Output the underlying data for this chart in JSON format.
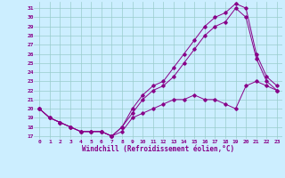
{
  "xlabel": "Windchill (Refroidissement éolien,°C)",
  "bg_color": "#cceeff",
  "grid_color": "#99cccc",
  "line_color": "#880088",
  "x_ticks": [
    0,
    1,
    2,
    3,
    4,
    5,
    6,
    7,
    8,
    9,
    10,
    11,
    12,
    13,
    14,
    15,
    16,
    17,
    18,
    19,
    20,
    21,
    22,
    23
  ],
  "y_ticks": [
    17,
    18,
    19,
    20,
    21,
    22,
    23,
    24,
    25,
    26,
    27,
    28,
    29,
    30,
    31
  ],
  "ylim": [
    16.7,
    31.7
  ],
  "xlim": [
    -0.5,
    23.5
  ],
  "series": [
    {
      "x": [
        0,
        1,
        2,
        3,
        4,
        5,
        6,
        7,
        8,
        9,
        10,
        11,
        12,
        13,
        14,
        15,
        16,
        17,
        18,
        19,
        20,
        21,
        22,
        23
      ],
      "y": [
        20,
        19,
        18.5,
        18,
        17.5,
        17.5,
        17.5,
        17,
        17.5,
        19,
        19.5,
        20,
        20.5,
        21,
        21,
        21.5,
        21,
        21,
        20.5,
        20,
        22.5,
        23,
        22.5,
        22
      ]
    },
    {
      "x": [
        0,
        1,
        2,
        3,
        4,
        5,
        6,
        7,
        8,
        9,
        10,
        11,
        12,
        13,
        14,
        15,
        16,
        17,
        18,
        19,
        20,
        21,
        22,
        23
      ],
      "y": [
        20,
        19,
        18.5,
        18,
        17.5,
        17.5,
        17.5,
        17,
        18,
        19.5,
        21,
        22,
        22.5,
        23.5,
        25,
        26.5,
        28,
        29,
        29.5,
        31,
        30,
        25.5,
        23,
        22
      ]
    },
    {
      "x": [
        0,
        1,
        2,
        3,
        4,
        5,
        6,
        7,
        8,
        9,
        10,
        11,
        12,
        13,
        14,
        15,
        16,
        17,
        18,
        19,
        20,
        21,
        22,
        23
      ],
      "y": [
        20,
        19,
        18.5,
        18,
        17.5,
        17.5,
        17.5,
        17,
        18,
        20,
        21.5,
        22.5,
        23,
        24.5,
        26,
        27.5,
        29,
        30,
        30.5,
        31.5,
        31,
        26,
        23.5,
        22.5
      ]
    }
  ]
}
